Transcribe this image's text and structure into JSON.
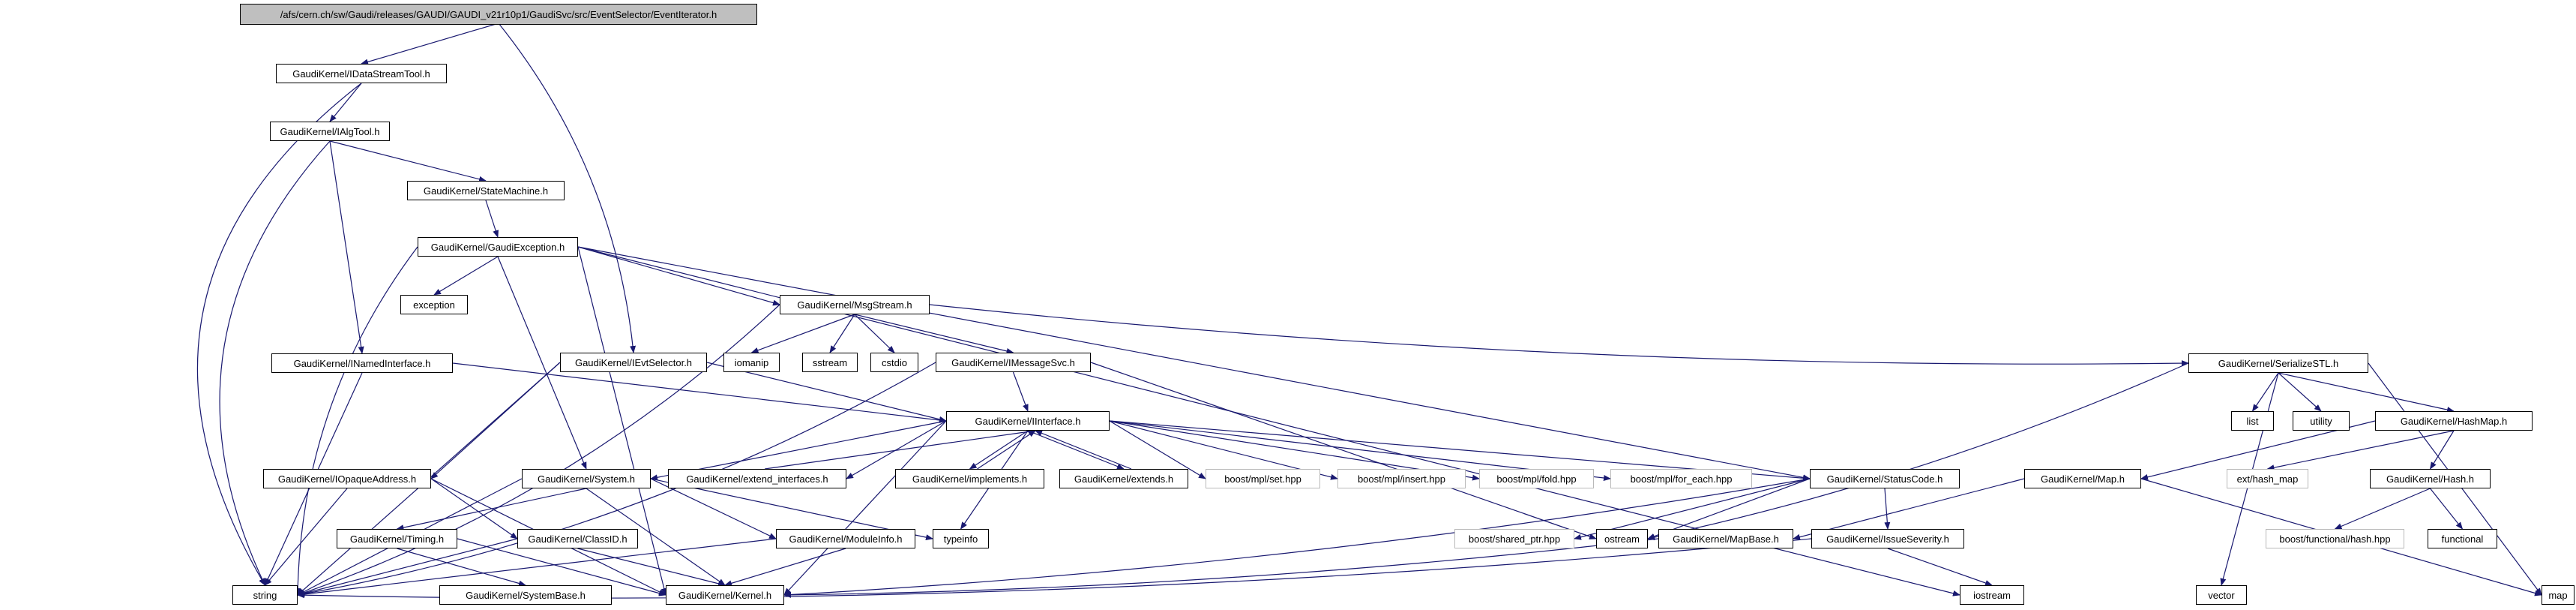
{
  "graph": {
    "type": "include-dependency-graph",
    "colors": {
      "edge": "#191970",
      "node_fill": "#ffffff",
      "node_border": "#000000",
      "external_border": "#b9b9b9",
      "root_fill": "#bfbfbf",
      "text": "#000000"
    },
    "nodes": [
      {
        "id": "root",
        "label": "/afs/cern.ch/sw/Gaudi/releases/GAUDI/GAUDI_v21r10p1/GaudiSvc/src/EventSelector/EventIterator.h",
        "kind": "root"
      },
      {
        "id": "idatastreamtool",
        "label": "GaudiKernel/IDataStreamTool.h",
        "kind": "internal"
      },
      {
        "id": "ialgtool",
        "label": "GaudiKernel/IAlgTool.h",
        "kind": "internal"
      },
      {
        "id": "statemachine",
        "label": "GaudiKernel/StateMachine.h",
        "kind": "internal"
      },
      {
        "id": "gaudiexception",
        "label": "GaudiKernel/GaudiException.h",
        "kind": "internal"
      },
      {
        "id": "exception",
        "label": "exception",
        "kind": "system"
      },
      {
        "id": "msgstream",
        "label": "GaudiKernel/MsgStream.h",
        "kind": "internal"
      },
      {
        "id": "inamedinterface",
        "label": "GaudiKernel/INamedInterface.h",
        "kind": "internal"
      },
      {
        "id": "ievtselector",
        "label": "GaudiKernel/IEvtSelector.h",
        "kind": "internal"
      },
      {
        "id": "iomanip",
        "label": "iomanip",
        "kind": "system"
      },
      {
        "id": "sstream",
        "label": "sstream",
        "kind": "system"
      },
      {
        "id": "cstdio",
        "label": "cstdio",
        "kind": "system"
      },
      {
        "id": "imessagesvc",
        "label": "GaudiKernel/IMessageSvc.h",
        "kind": "internal"
      },
      {
        "id": "serializestl",
        "label": "GaudiKernel/SerializeSTL.h",
        "kind": "internal"
      },
      {
        "id": "iinterface",
        "label": "GaudiKernel/IInterface.h",
        "kind": "internal"
      },
      {
        "id": "list",
        "label": "list",
        "kind": "system"
      },
      {
        "id": "utility",
        "label": "utility",
        "kind": "system"
      },
      {
        "id": "hashmap",
        "label": "GaudiKernel/HashMap.h",
        "kind": "internal"
      },
      {
        "id": "iopaqueaddress",
        "label": "GaudiKernel/IOpaqueAddress.h",
        "kind": "internal"
      },
      {
        "id": "system",
        "label": "GaudiKernel/System.h",
        "kind": "internal"
      },
      {
        "id": "extend_interfaces",
        "label": "GaudiKernel/extend_interfaces.h",
        "kind": "internal"
      },
      {
        "id": "implements",
        "label": "GaudiKernel/implements.h",
        "kind": "internal"
      },
      {
        "id": "extends",
        "label": "GaudiKernel/extends.h",
        "kind": "internal"
      },
      {
        "id": "mpl_set",
        "label": "boost/mpl/set.hpp",
        "kind": "external"
      },
      {
        "id": "mpl_insert",
        "label": "boost/mpl/insert.hpp",
        "kind": "external"
      },
      {
        "id": "mpl_fold",
        "label": "boost/mpl/fold.hpp",
        "kind": "external"
      },
      {
        "id": "mpl_foreach",
        "label": "boost/mpl/for_each.hpp",
        "kind": "external"
      },
      {
        "id": "statuscode",
        "label": "GaudiKernel/StatusCode.h",
        "kind": "internal"
      },
      {
        "id": "map_h",
        "label": "GaudiKernel/Map.h",
        "kind": "internal"
      },
      {
        "id": "ext_hashmap",
        "label": "ext/hash_map",
        "kind": "external"
      },
      {
        "id": "hash_h",
        "label": "GaudiKernel/Hash.h",
        "kind": "internal"
      },
      {
        "id": "timing",
        "label": "GaudiKernel/Timing.h",
        "kind": "internal"
      },
      {
        "id": "classid",
        "label": "GaudiKernel/ClassID.h",
        "kind": "internal"
      },
      {
        "id": "moduleinfo",
        "label": "GaudiKernel/ModuleInfo.h",
        "kind": "internal"
      },
      {
        "id": "typeinfo",
        "label": "typeinfo",
        "kind": "system"
      },
      {
        "id": "shared_ptr",
        "label": "boost/shared_ptr.hpp",
        "kind": "external"
      },
      {
        "id": "ostream",
        "label": "ostream",
        "kind": "system"
      },
      {
        "id": "mapbase",
        "label": "GaudiKernel/MapBase.h",
        "kind": "internal"
      },
      {
        "id": "issueseverity",
        "label": "GaudiKernel/IssueSeverity.h",
        "kind": "internal"
      },
      {
        "id": "boost_hash",
        "label": "boost/functional/hash.hpp",
        "kind": "external"
      },
      {
        "id": "functional",
        "label": "functional",
        "kind": "system"
      },
      {
        "id": "string",
        "label": "string",
        "kind": "system"
      },
      {
        "id": "systembase",
        "label": "GaudiKernel/SystemBase.h",
        "kind": "internal"
      },
      {
        "id": "kernel",
        "label": "GaudiKernel/Kernel.h",
        "kind": "internal"
      },
      {
        "id": "iostream",
        "label": "iostream",
        "kind": "system"
      },
      {
        "id": "vector",
        "label": "vector",
        "kind": "system"
      },
      {
        "id": "map",
        "label": "map",
        "kind": "system"
      }
    ],
    "edges": [
      {
        "from": "root",
        "to": "idatastreamtool"
      },
      {
        "from": "root",
        "to": "ievtselector"
      },
      {
        "from": "idatastreamtool",
        "to": "ialgtool"
      },
      {
        "from": "idatastreamtool",
        "to": "string"
      },
      {
        "from": "ialgtool",
        "to": "statemachine"
      },
      {
        "from": "ialgtool",
        "to": "inamedinterface"
      },
      {
        "from": "ialgtool",
        "to": "string"
      },
      {
        "from": "statemachine",
        "to": "gaudiexception"
      },
      {
        "from": "gaudiexception",
        "to": "exception"
      },
      {
        "from": "gaudiexception",
        "to": "string"
      },
      {
        "from": "gaudiexception",
        "to": "kernel"
      },
      {
        "from": "gaudiexception",
        "to": "system"
      },
      {
        "from": "gaudiexception",
        "to": "statuscode"
      },
      {
        "from": "gaudiexception",
        "to": "msgstream"
      },
      {
        "from": "gaudiexception",
        "to": "iostream"
      },
      {
        "from": "msgstream",
        "to": "iomanip"
      },
      {
        "from": "msgstream",
        "to": "sstream"
      },
      {
        "from": "msgstream",
        "to": "cstdio"
      },
      {
        "from": "msgstream",
        "to": "imessagesvc"
      },
      {
        "from": "msgstream",
        "to": "serializestl"
      },
      {
        "from": "msgstream",
        "to": "string"
      },
      {
        "from": "inamedinterface",
        "to": "iinterface"
      },
      {
        "from": "inamedinterface",
        "to": "string"
      },
      {
        "from": "ievtselector",
        "to": "iinterface"
      },
      {
        "from": "ievtselector",
        "to": "iopaqueaddress"
      },
      {
        "from": "ievtselector",
        "to": "string"
      },
      {
        "from": "imessagesvc",
        "to": "iinterface"
      },
      {
        "from": "imessagesvc",
        "to": "string"
      },
      {
        "from": "imessagesvc",
        "to": "ostream"
      },
      {
        "from": "iinterface",
        "to": "implements"
      },
      {
        "from": "implements",
        "to": "iinterface"
      },
      {
        "from": "iinterface",
        "to": "extends"
      },
      {
        "from": "extends",
        "to": "iinterface"
      },
      {
        "from": "iinterface",
        "to": "extend_interfaces"
      },
      {
        "from": "extend_interfaces",
        "to": "iinterface"
      },
      {
        "from": "iinterface",
        "to": "mpl_set"
      },
      {
        "from": "iinterface",
        "to": "mpl_insert"
      },
      {
        "from": "iinterface",
        "to": "mpl_fold"
      },
      {
        "from": "iinterface",
        "to": "mpl_foreach"
      },
      {
        "from": "iinterface",
        "to": "statuscode"
      },
      {
        "from": "iinterface",
        "to": "kernel"
      },
      {
        "from": "iinterface",
        "to": "typeinfo"
      },
      {
        "from": "iinterface",
        "to": "system"
      },
      {
        "from": "iopaqueaddress",
        "to": "classid"
      },
      {
        "from": "iopaqueaddress",
        "to": "string"
      },
      {
        "from": "iopaqueaddress",
        "to": "kernel"
      },
      {
        "from": "system",
        "to": "timing"
      },
      {
        "from": "system",
        "to": "moduleinfo"
      },
      {
        "from": "system",
        "to": "string"
      },
      {
        "from": "system",
        "to": "kernel"
      },
      {
        "from": "system",
        "to": "typeinfo"
      },
      {
        "from": "timing",
        "to": "systembase"
      },
      {
        "from": "timing",
        "to": "kernel"
      },
      {
        "from": "classid",
        "to": "kernel"
      },
      {
        "from": "classid",
        "to": "string"
      },
      {
        "from": "moduleinfo",
        "to": "kernel"
      },
      {
        "from": "moduleinfo",
        "to": "string"
      },
      {
        "from": "statuscode",
        "to": "kernel"
      },
      {
        "from": "statuscode",
        "to": "issueseverity"
      },
      {
        "from": "statuscode",
        "to": "shared_ptr"
      },
      {
        "from": "statuscode",
        "to": "ostream"
      },
      {
        "from": "issueseverity",
        "to": "string"
      },
      {
        "from": "issueseverity",
        "to": "iostream"
      },
      {
        "from": "serializestl",
        "to": "list"
      },
      {
        "from": "serializestl",
        "to": "utility"
      },
      {
        "from": "serializestl",
        "to": "hashmap"
      },
      {
        "from": "serializestl",
        "to": "vector"
      },
      {
        "from": "serializestl",
        "to": "map"
      },
      {
        "from": "serializestl",
        "to": "ostream"
      },
      {
        "from": "hashmap",
        "to": "map_h"
      },
      {
        "from": "hashmap",
        "to": "ext_hashmap"
      },
      {
        "from": "hashmap",
        "to": "hash_h"
      },
      {
        "from": "map_h",
        "to": "mapbase"
      },
      {
        "from": "map_h",
        "to": "map"
      },
      {
        "from": "hash_h",
        "to": "boost_hash"
      },
      {
        "from": "hash_h",
        "to": "functional"
      },
      {
        "from": "mapbase",
        "to": "kernel"
      }
    ]
  }
}
